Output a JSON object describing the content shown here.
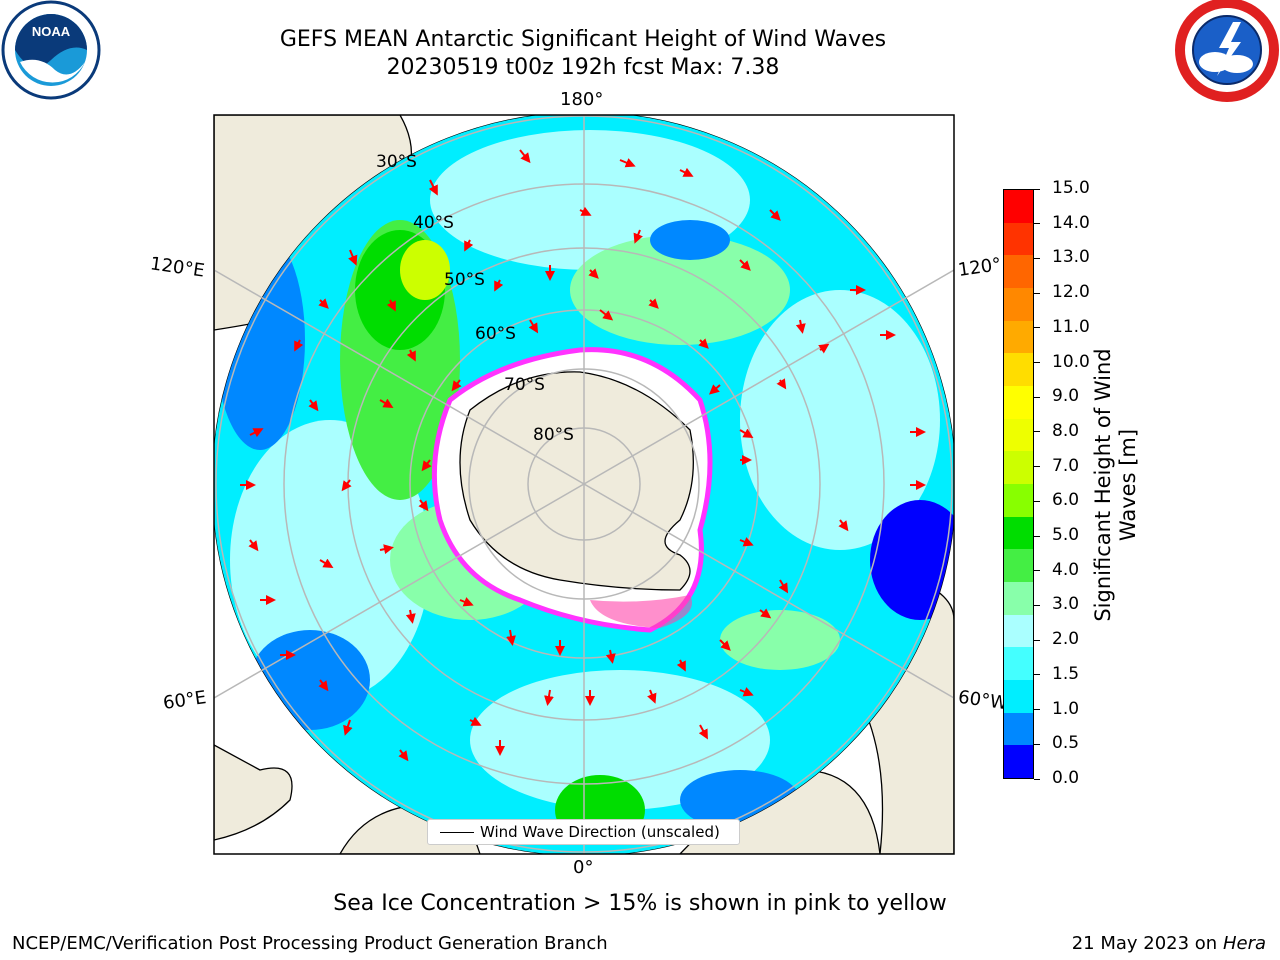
{
  "header": {
    "title_line1": "GEFS MEAN Antarctic Significant Height of Wind Waves",
    "title_line2": "20230519 t00z 192h fcst   Max: 7.38"
  },
  "logos": {
    "left": {
      "name": "noaa-logo",
      "text": "NOAA"
    },
    "right": {
      "name": "nws-logo"
    }
  },
  "map": {
    "longitude_labels": [
      "180°",
      "120°E",
      "120°",
      "60°E",
      "60°W",
      "0°"
    ],
    "latitude_labels": [
      "30°S",
      "40°S",
      "50°S",
      "60°S",
      "70°S",
      "80°S"
    ],
    "legend_label": "Wind Wave Direction (unscaled)"
  },
  "colorbar": {
    "label": "Significant Height of Wind Waves [m]",
    "ticks": [
      "15.0",
      "14.0",
      "13.0",
      "12.0",
      "11.0",
      "10.0",
      "9.0",
      "8.0",
      "7.0",
      "6.0",
      "5.0",
      "4.0",
      "3.0",
      "2.0",
      "1.5",
      "1.0",
      "0.5",
      "0.0"
    ],
    "colors": [
      "#ff0000",
      "#ff3300",
      "#ff6600",
      "#ff8800",
      "#ffaa00",
      "#ffdd00",
      "#ffff00",
      "#eeff00",
      "#ccff00",
      "#88ff00",
      "#00dd00",
      "#44ee44",
      "#88ffaa",
      "#aaffff",
      "#44ffff",
      "#00eeff",
      "#0088ff",
      "#0000ff"
    ]
  },
  "colors": {
    "land": "#efebdc",
    "ice": "#ffffff",
    "ice_edge": "#ff33ff",
    "arrow": "#ff0000",
    "grid": "#b8b8b8"
  },
  "footer": {
    "note": "Sea Ice Concentration > 15% is shown in pink to yellow",
    "left": "NCEP/EMC/Verification Post Processing Product Generation Branch",
    "date": "21 May 2023 on",
    "host": "Hera"
  }
}
